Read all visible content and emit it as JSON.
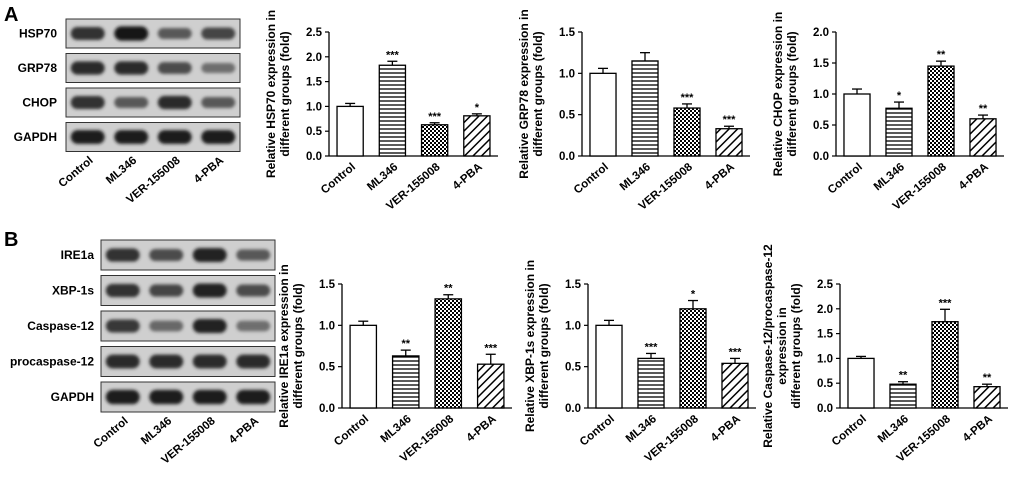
{
  "panels": [
    {
      "letter": "A",
      "blot": {
        "rows": [
          "HSP70",
          "GRP78",
          "CHOP",
          "GAPDH"
        ],
        "lanes": [
          "Control",
          "ML346",
          "VER-155008",
          "4-PBA"
        ],
        "band_intensity": [
          [
            0.75,
            0.95,
            0.45,
            0.6
          ],
          [
            0.8,
            0.8,
            0.55,
            0.3
          ],
          [
            0.75,
            0.45,
            0.8,
            0.45
          ],
          [
            0.9,
            0.9,
            0.9,
            0.9
          ]
        ]
      }
    },
    {
      "letter": "B",
      "blot": {
        "rows": [
          "IRE1a",
          "XBP-1s",
          "Caspase-12",
          "procaspase-12",
          "GAPDH"
        ],
        "lanes": [
          "Control",
          "ML346",
          "VER-155008",
          "4-PBA"
        ],
        "band_intensity": [
          [
            0.75,
            0.55,
            0.85,
            0.45
          ],
          [
            0.75,
            0.6,
            0.85,
            0.55
          ],
          [
            0.7,
            0.35,
            0.85,
            0.3
          ],
          [
            0.8,
            0.8,
            0.8,
            0.8
          ],
          [
            0.9,
            0.9,
            0.9,
            0.9
          ]
        ]
      }
    }
  ],
  "chart_data": [
    {
      "type": "bar",
      "categories": [
        "Control",
        "ML346",
        "VER-155008",
        "4-PBA"
      ],
      "values": [
        1.0,
        1.83,
        0.63,
        0.81
      ],
      "errors": [
        0.06,
        0.08,
        0.04,
        0.04
      ],
      "significance": [
        "",
        "***",
        "***",
        "*"
      ],
      "patterns": [
        "open",
        "hlines",
        "check",
        "diag"
      ],
      "ylabel_lines": [
        "Relative HSP70 expression in",
        "different groups (fold)"
      ],
      "ylim": [
        0,
        2.5
      ],
      "yticks": [
        0.0,
        0.5,
        1.0,
        1.5,
        2.0,
        2.5
      ],
      "tick_labels": [
        "0.0",
        "0.5",
        "1.0",
        "1.5",
        "2.0",
        "2.5"
      ]
    },
    {
      "type": "bar",
      "categories": [
        "Control",
        "ML346",
        "VER-155008",
        "4-PBA"
      ],
      "values": [
        1.0,
        1.15,
        0.58,
        0.33
      ],
      "errors": [
        0.06,
        0.1,
        0.05,
        0.03
      ],
      "significance": [
        "",
        "",
        "***",
        "***"
      ],
      "patterns": [
        "open",
        "hlines",
        "check",
        "diag"
      ],
      "ylabel_lines": [
        "Relative GRP78 expression in",
        "different groups (fold)"
      ],
      "ylim": [
        0,
        1.5
      ],
      "yticks": [
        0.0,
        0.5,
        1.0,
        1.5
      ],
      "tick_labels": [
        "0.0",
        "0.5",
        "1.0",
        "1.5"
      ]
    },
    {
      "type": "bar",
      "categories": [
        "Control",
        "ML346",
        "VER-155008",
        "4-PBA"
      ],
      "values": [
        1.0,
        0.77,
        1.45,
        0.6
      ],
      "errors": [
        0.08,
        0.1,
        0.08,
        0.06
      ],
      "significance": [
        "",
        "*",
        "**",
        "**"
      ],
      "patterns": [
        "open",
        "hlines",
        "check",
        "diag"
      ],
      "ylabel_lines": [
        "Relative CHOP expression in",
        "different groups (fold)"
      ],
      "ylim": [
        0,
        2.0
      ],
      "yticks": [
        0.0,
        0.5,
        1.0,
        1.5,
        2.0
      ],
      "tick_labels": [
        "0.0",
        "0.5",
        "1.0",
        "1.5",
        "2.0"
      ]
    },
    {
      "type": "bar",
      "categories": [
        "Control",
        "ML346",
        "VER-155008",
        "4-PBA"
      ],
      "values": [
        1.0,
        0.63,
        1.32,
        0.53
      ],
      "errors": [
        0.05,
        0.07,
        0.05,
        0.12
      ],
      "significance": [
        "",
        "**",
        "**",
        "***"
      ],
      "patterns": [
        "open",
        "hlines",
        "check",
        "diag"
      ],
      "ylabel_lines": [
        "Relative IRE1a expression in",
        "different groups (fold)"
      ],
      "ylim": [
        0,
        1.5
      ],
      "yticks": [
        0.0,
        0.5,
        1.0,
        1.5
      ],
      "tick_labels": [
        "0.0",
        "0.5",
        "1.0",
        "1.5"
      ]
    },
    {
      "type": "bar",
      "categories": [
        "Control",
        "ML346",
        "VER-155008",
        "4-PBA"
      ],
      "values": [
        1.0,
        0.6,
        1.2,
        0.54
      ],
      "errors": [
        0.06,
        0.06,
        0.1,
        0.06
      ],
      "significance": [
        "",
        "***",
        "*",
        "***"
      ],
      "patterns": [
        "open",
        "hlines",
        "check",
        "diag"
      ],
      "ylabel_lines": [
        "Relative XBP-1s expression in",
        "different groups (fold)"
      ],
      "ylim": [
        0,
        1.5
      ],
      "yticks": [
        0.0,
        0.5,
        1.0,
        1.5
      ],
      "tick_labels": [
        "0.0",
        "0.5",
        "1.0",
        "1.5"
      ]
    },
    {
      "type": "bar",
      "categories": [
        "Control",
        "ML346",
        "VER-155008",
        "4-PBA"
      ],
      "values": [
        1.0,
        0.48,
        1.74,
        0.43
      ],
      "errors": [
        0.04,
        0.05,
        0.25,
        0.05
      ],
      "significance": [
        "",
        "**",
        "***",
        "**"
      ],
      "patterns": [
        "open",
        "hlines",
        "check",
        "diag"
      ],
      "ylabel_lines": [
        "Relative Caspase-12/procaspase-12",
        "expression in",
        "different groups (fold)"
      ],
      "ylim": [
        0,
        2.5
      ],
      "yticks": [
        0.0,
        0.5,
        1.0,
        1.5,
        2.0,
        2.5
      ],
      "tick_labels": [
        "0.0",
        "0.5",
        "1.0",
        "1.5",
        "2.0",
        "2.5"
      ]
    }
  ]
}
